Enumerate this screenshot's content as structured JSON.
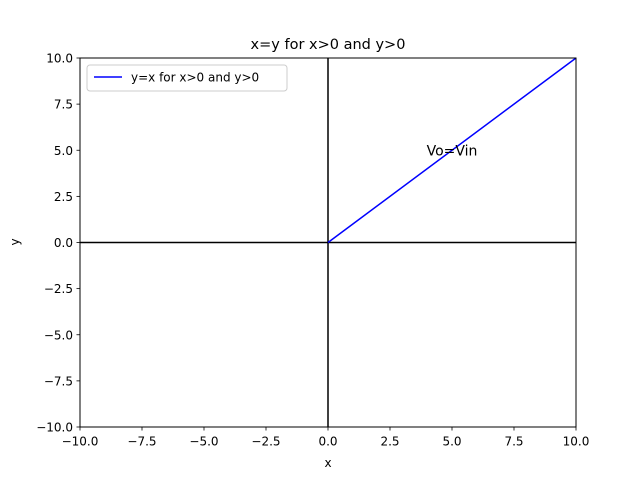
{
  "chart_data": {
    "type": "line",
    "title": "x=y for x>0 and y>0",
    "xlabel": "x",
    "ylabel": "y",
    "xlim": [
      -10,
      10
    ],
    "ylim": [
      -10,
      10
    ],
    "grid": false,
    "legend_position": "top-left",
    "x_ticks": [
      -10.0,
      -7.5,
      -5.0,
      -2.5,
      0.0,
      2.5,
      5.0,
      7.5,
      10.0
    ],
    "y_ticks": [
      -10.0,
      -7.5,
      -5.0,
      -2.5,
      0.0,
      2.5,
      5.0,
      7.5,
      10.0
    ],
    "x_tick_labels": [
      "−10.0",
      "−7.5",
      "−5.0",
      "−2.5",
      "0.0",
      "2.5",
      "5.0",
      "7.5",
      "10.0"
    ],
    "y_tick_labels": [
      "−10.0",
      "−7.5",
      "−5.0",
      "−2.5",
      "0.0",
      "2.5",
      "5.0",
      "7.5",
      "10.0"
    ],
    "series": [
      {
        "name": "y=x for x>0 and y>0",
        "color": "#0000ff",
        "x": [
          0,
          10
        ],
        "y": [
          0,
          10
        ]
      }
    ],
    "reference_lines": [
      {
        "orientation": "horizontal",
        "value": 0,
        "color": "#000000"
      },
      {
        "orientation": "vertical",
        "value": 0,
        "color": "#000000"
      }
    ],
    "annotations": [
      {
        "text": "Vo=Vin",
        "x": 5,
        "y": 5
      }
    ]
  }
}
